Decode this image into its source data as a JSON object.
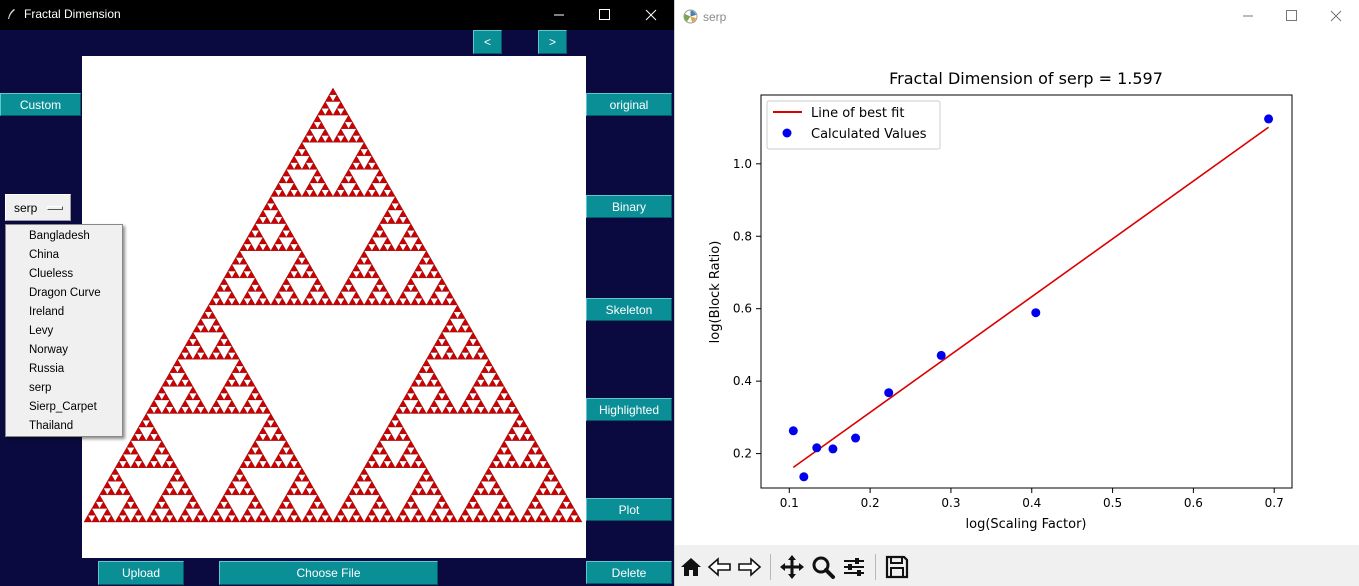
{
  "left_window": {
    "title": "Fractal Dimension",
    "nav": {
      "prev_label": "<",
      "next_label": ">"
    },
    "custom_label": "Custom",
    "side_buttons": {
      "original": "original",
      "binary": "Binary",
      "skeleton": "Skeleton",
      "highlighted": "Highlighted",
      "plot": "Plot",
      "delete": "Delete"
    },
    "bottom": {
      "upload_label": "Upload",
      "choose_file_label": "Choose File"
    },
    "selector": {
      "selected": "serp",
      "options": [
        "Bangladesh",
        "China",
        "Clueless",
        "Dragon Curve",
        "Ireland",
        "Levy",
        "Norway",
        "Russia",
        "serp",
        "Sierp_Carpet",
        "Thailand"
      ]
    },
    "fractal_color": "#cc0000"
  },
  "right_window": {
    "title": "serp",
    "toolbar_icons": [
      "home-icon",
      "back-arrow-icon",
      "forward-arrow-icon",
      "pan-icon",
      "zoom-icon",
      "configure-subplots-icon",
      "save-icon"
    ]
  },
  "chart_data": {
    "type": "scatter",
    "title": "Fractal Dimension of serp = 1.597",
    "xlabel": "log(Scaling Factor)",
    "ylabel": "log(Block Ratio)",
    "xlim": [
      0.065,
      0.722
    ],
    "ylim": [
      0.105,
      1.19
    ],
    "xticks": [
      0.1,
      0.2,
      0.3,
      0.4,
      0.5,
      0.6,
      0.7
    ],
    "yticks": [
      0.2,
      0.4,
      0.6,
      0.8,
      1.0
    ],
    "xtick_labels": [
      "0.1",
      "0.2",
      "0.3",
      "0.4",
      "0.5",
      "0.6",
      "0.7"
    ],
    "ytick_labels": [
      "0.2",
      "0.4",
      "0.6",
      "0.8",
      "1.0"
    ],
    "grid": false,
    "legend_position": "top-left",
    "series": [
      {
        "name": "Line of best fit",
        "kind": "line",
        "color": "#dd0000",
        "x": [
          0.105,
          0.693
        ],
        "y": [
          0.162,
          1.101
        ]
      },
      {
        "name": "Calculated Values",
        "kind": "scatter",
        "color": "#0000ee",
        "x": [
          0.105,
          0.118,
          0.134,
          0.154,
          0.182,
          0.223,
          0.288,
          0.405,
          0.693
        ],
        "y": [
          0.263,
          0.136,
          0.216,
          0.213,
          0.243,
          0.368,
          0.471,
          0.589,
          1.124
        ]
      }
    ]
  }
}
